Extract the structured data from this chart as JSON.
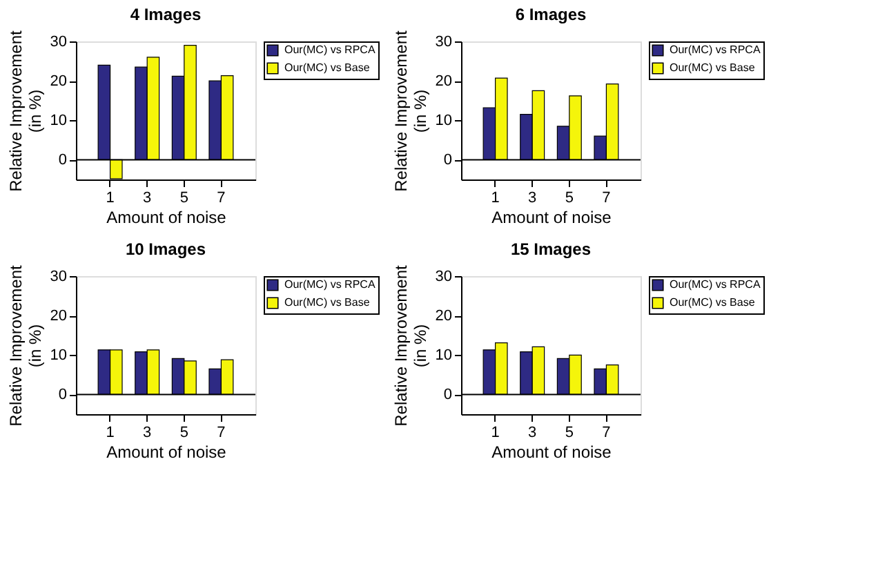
{
  "chart_data": [
    {
      "type": "bar",
      "title": "4 Images",
      "xlabel": "Amount of noise",
      "ylabel": "Relative Improvement\n(in %)",
      "categories": [
        "1",
        "3",
        "5",
        "7"
      ],
      "ylim": [
        -5,
        30
      ],
      "yticks": [
        0,
        10,
        20,
        30
      ],
      "grid": false,
      "legend": "right",
      "ref_lines": [
        {
          "axis": "y",
          "value": 0,
          "color": "#000000"
        }
      ],
      "series": [
        {
          "name": "Our(MC) vs RPCA",
          "color": "#2e2a84",
          "values": [
            24,
            23.5,
            21.2,
            20
          ]
        },
        {
          "name": "Our(MC) vs Base",
          "color": "#f5f50a",
          "values": [
            -4.8,
            26,
            29,
            21.3
          ]
        }
      ]
    },
    {
      "type": "bar",
      "title": "6 Images",
      "xlabel": "Amount of noise",
      "ylabel": "Relative Improvement\n(in %)",
      "categories": [
        "1",
        "3",
        "5",
        "7"
      ],
      "ylim": [
        -5,
        30
      ],
      "yticks": [
        0,
        10,
        20,
        30
      ],
      "grid": false,
      "legend": "right",
      "ref_lines": [
        {
          "axis": "y",
          "value": 0,
          "color": "#000000"
        }
      ],
      "series": [
        {
          "name": "Our(MC) vs RPCA",
          "color": "#2e2a84",
          "values": [
            13.2,
            11.5,
            8.5,
            6
          ]
        },
        {
          "name": "Our(MC) vs Base",
          "color": "#f5f50a",
          "values": [
            20.7,
            17.5,
            16.2,
            19.2
          ]
        }
      ]
    },
    {
      "type": "bar",
      "title": "10 Images",
      "xlabel": "Amount of noise",
      "ylabel": "Relative Improvement\n(in %)",
      "categories": [
        "1",
        "3",
        "5",
        "7"
      ],
      "ylim": [
        -5,
        30
      ],
      "yticks": [
        0,
        10,
        20,
        30
      ],
      "grid": false,
      "legend": "right",
      "ref_lines": [
        {
          "axis": "y",
          "value": 0,
          "color": "#000000"
        }
      ],
      "series": [
        {
          "name": "Our(MC) vs RPCA",
          "color": "#2e2a84",
          "values": [
            11.3,
            10.8,
            9.1,
            6.5
          ]
        },
        {
          "name": "Our(MC) vs Base",
          "color": "#f5f50a",
          "values": [
            11.3,
            11.3,
            8.5,
            8.8
          ]
        }
      ]
    },
    {
      "type": "bar",
      "title": "15 Images",
      "xlabel": "Amount of noise",
      "ylabel": "Relative Improvement\n(in %)",
      "categories": [
        "1",
        "3",
        "5",
        "7"
      ],
      "ylim": [
        -5,
        30
      ],
      "yticks": [
        0,
        10,
        20,
        30
      ],
      "grid": false,
      "legend": "right",
      "ref_lines": [
        {
          "axis": "y",
          "value": 0,
          "color": "#000000"
        }
      ],
      "series": [
        {
          "name": "Our(MC) vs RPCA",
          "color": "#2e2a84",
          "values": [
            11.3,
            10.8,
            9.1,
            6.5
          ]
        },
        {
          "name": "Our(MC) vs Base",
          "color": "#f5f50a",
          "values": [
            13.1,
            12.1,
            10,
            7.5
          ]
        }
      ]
    }
  ]
}
